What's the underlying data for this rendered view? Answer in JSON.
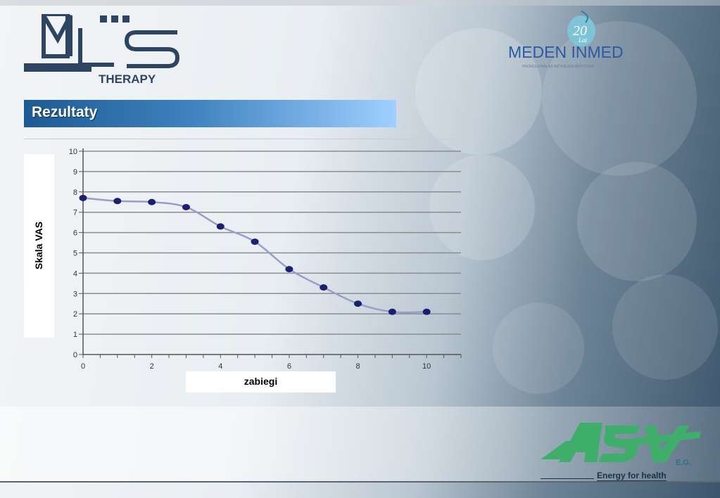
{
  "slide": {
    "title": "Rezultaty",
    "logos": {
      "mls_text": "M L S",
      "mls_sub": "THERAPY",
      "meden_text": "MEDEN  INMED",
      "meden_badge": "20 Lat",
      "meden_tagline": "PROFESJONALNA INŻYNIERIA MEDYCZNA",
      "asg_text": "ASG",
      "asg_sub": "E.G.",
      "asg_tagline": "Energy for health"
    }
  },
  "chart_data": {
    "type": "line",
    "xlabel": "zabiegi",
    "ylabel": "Skala VAS",
    "xlim": [
      0,
      11
    ],
    "ylim": [
      0,
      10
    ],
    "x_ticks": [
      0,
      2,
      4,
      6,
      8,
      10
    ],
    "y_ticks": [
      0,
      1,
      2,
      3,
      4,
      5,
      6,
      7,
      8,
      9,
      10
    ],
    "grid": "horizontal",
    "series": [
      {
        "x": [
          0,
          1,
          2,
          3,
          4,
          5,
          6,
          7,
          8,
          9,
          10
        ],
        "y": [
          7.7,
          7.55,
          7.5,
          7.25,
          6.3,
          5.55,
          4.2,
          3.3,
          2.5,
          2.1,
          2.1
        ],
        "color": "#9a9cc9",
        "marker_color": "#1a1f6e"
      }
    ]
  }
}
